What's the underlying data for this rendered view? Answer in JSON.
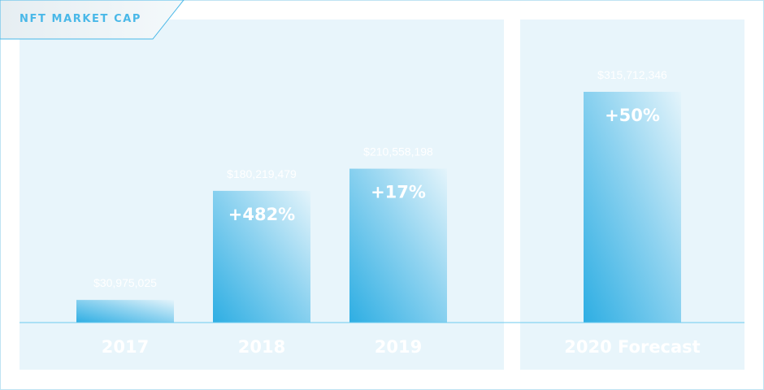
{
  "title": "NFT MARKET CAP",
  "colors": {
    "bar_dark": "#2eaee3",
    "bar_light": "#dff2fb",
    "panel": "#e8f5fb",
    "baseline": "#6ccbef",
    "title": "#49b8e8"
  },
  "chart_data": {
    "type": "bar",
    "title": "NFT MARKET CAP",
    "categories": [
      "2017",
      "2018",
      "2019",
      "2020 Forecast"
    ],
    "values": [
      30975025,
      180219479,
      210558198,
      315712346
    ],
    "value_labels": [
      "$30,975,025",
      "$180,219,479",
      "$210,558,198",
      "$315,712,346"
    ],
    "growth_labels": [
      "",
      "+482%",
      "+17%",
      "+50%"
    ],
    "forecast_index": 3,
    "ylim": [
      0,
      315712346
    ],
    "grid": false,
    "legend": "none"
  }
}
